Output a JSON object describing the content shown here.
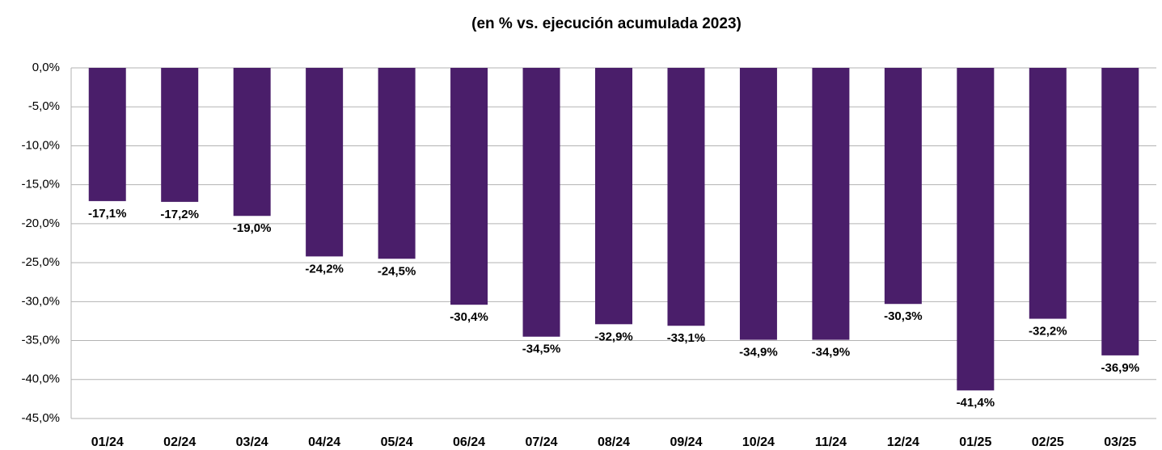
{
  "chart_data": {
    "type": "bar",
    "title": "(en % vs. ejecución acumulada 2023)",
    "categories": [
      "01/24",
      "02/24",
      "03/24",
      "04/24",
      "05/24",
      "06/24",
      "07/24",
      "08/24",
      "09/24",
      "10/24",
      "11/24",
      "12/24",
      "01/25",
      "02/25",
      "03/25"
    ],
    "values": [
      -17.1,
      -17.2,
      -19.0,
      -24.2,
      -24.5,
      -30.4,
      -34.5,
      -32.9,
      -33.1,
      -34.9,
      -34.9,
      -30.3,
      -41.4,
      -32.2,
      -36.9
    ],
    "value_labels": [
      "-17,1%",
      "-17,2%",
      "-19,0%",
      "-24,2%",
      "-24,5%",
      "-30,4%",
      "-34,5%",
      "-32,9%",
      "-33,1%",
      "-34,9%",
      "-34,9%",
      "-30,3%",
      "-41,4%",
      "-32,2%",
      "-36,9%"
    ],
    "color": "#4a1e6a",
    "ylim": [
      -45,
      0
    ],
    "yticks": [
      {
        "value": 0,
        "label": "0,0%"
      },
      {
        "value": -5,
        "label": "-5,0%"
      },
      {
        "value": -10,
        "label": "-10,0%"
      },
      {
        "value": -15,
        "label": "-15,0%"
      },
      {
        "value": -20,
        "label": "-20,0%"
      },
      {
        "value": -25,
        "label": "-25,0%"
      },
      {
        "value": -30,
        "label": "-30,0%"
      },
      {
        "value": -35,
        "label": "-35,0%"
      },
      {
        "value": -40,
        "label": "-40,0%"
      },
      {
        "value": -45,
        "label": "-45,0%"
      }
    ],
    "grid": true
  }
}
